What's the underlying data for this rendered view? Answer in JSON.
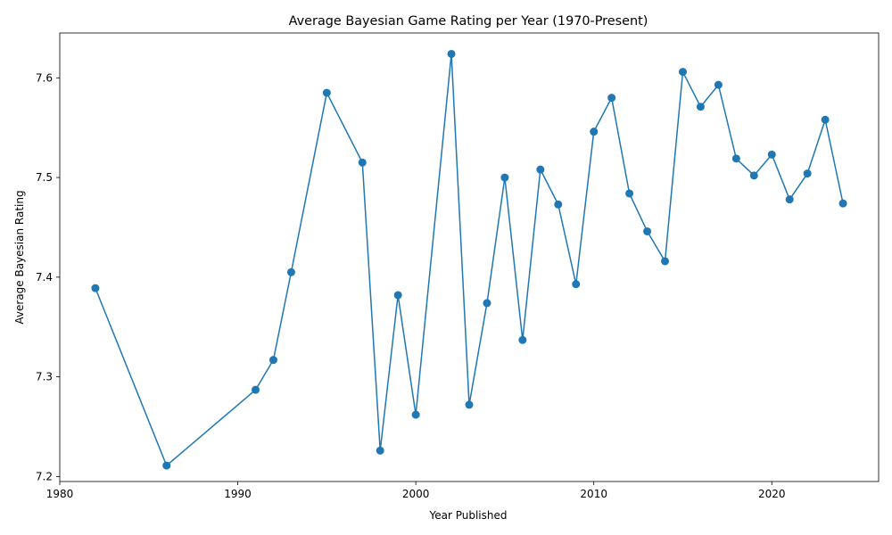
{
  "chart_data": {
    "type": "line",
    "title": "Average Bayesian Game Rating per Year (1970-Present)",
    "xlabel": "Year Published",
    "ylabel": "Average Bayesian Rating",
    "xlim": [
      1980,
      2026
    ],
    "ylim": [
      7.195,
      7.645
    ],
    "xticks": [
      1980,
      1990,
      2000,
      2010,
      2020
    ],
    "yticks": [
      7.2,
      7.3,
      7.4,
      7.5,
      7.6
    ],
    "ytick_labels": [
      "7.2",
      "7.3",
      "7.4",
      "7.5",
      "7.6"
    ],
    "grid": false,
    "line_color": "#1f77b4",
    "marker": "circle",
    "series": [
      {
        "x": [
          1982,
          1986,
          1991,
          1992,
          1993,
          1995,
          1997,
          1998,
          1999,
          2000,
          2002,
          2003,
          2004,
          2005,
          2006,
          2007,
          2008,
          2009,
          2010,
          2011,
          2012,
          2013,
          2014,
          2015,
          2016,
          2017,
          2018,
          2019,
          2020,
          2021,
          2022,
          2023,
          2024
        ],
        "values": [
          7.389,
          7.211,
          7.287,
          7.317,
          7.405,
          7.585,
          7.515,
          7.226,
          7.382,
          7.262,
          7.624,
          7.272,
          7.374,
          7.5,
          7.337,
          7.508,
          7.473,
          7.393,
          7.546,
          7.58,
          7.484,
          7.446,
          7.416,
          7.606,
          7.571,
          7.593,
          7.519,
          7.502,
          7.523,
          7.478,
          7.504,
          7.558,
          7.474
        ]
      }
    ]
  }
}
